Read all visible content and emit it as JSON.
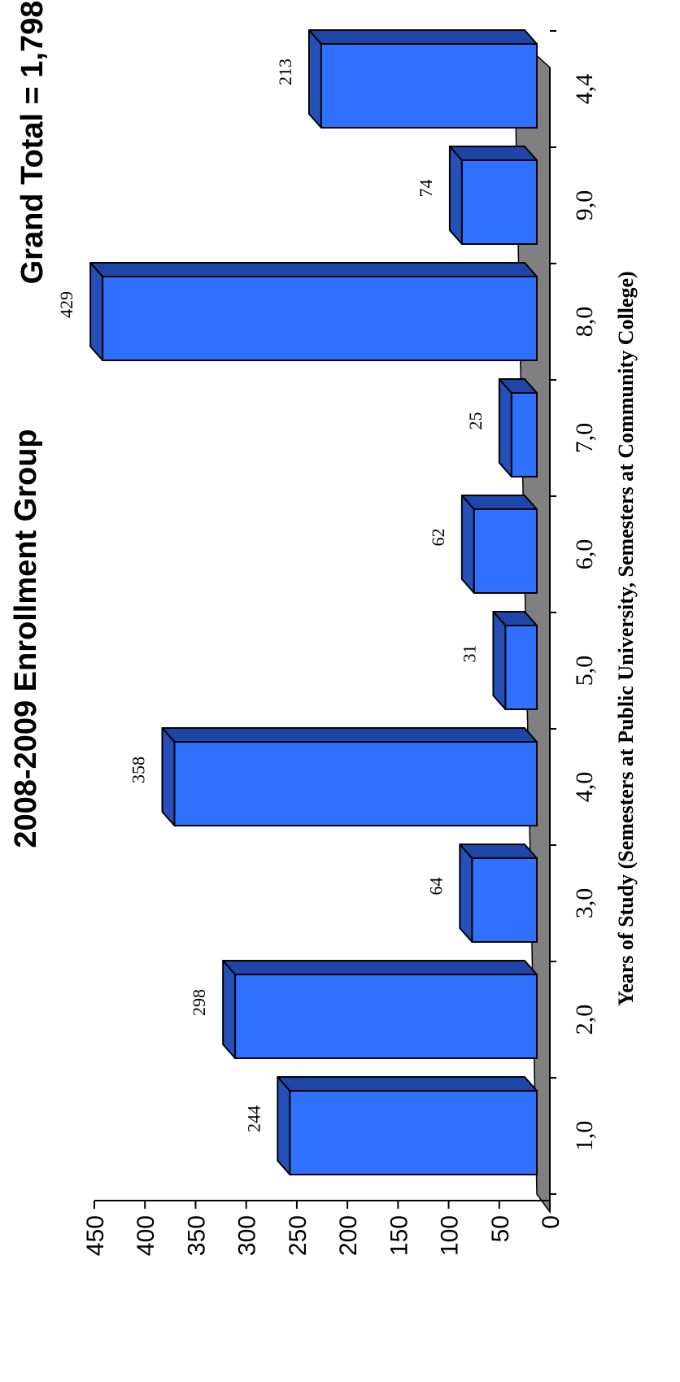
{
  "chart_data": {
    "type": "bar",
    "title": "2008-2009 Enrollment Group",
    "subtitle": "Grand Total = 1,798",
    "xlabel": "Years of Study (Semesters at Public University, Semesters at Community College)",
    "ylabel": "",
    "categories": [
      "1,0",
      "2,0",
      "3,0",
      "4,0",
      "5,0",
      "6,0",
      "7,0",
      "8,0",
      "9,0",
      "4,4"
    ],
    "values": [
      244,
      298,
      64,
      358,
      31,
      62,
      25,
      429,
      74,
      213
    ],
    "data_labels": [
      "244",
      "298",
      "64",
      "358",
      "31",
      "62",
      "25",
      "429",
      "74",
      "213"
    ],
    "ylim": [
      0,
      450
    ],
    "yticks": [
      "0",
      "50",
      "100",
      "150",
      "200",
      "250",
      "300",
      "350",
      "400",
      "450"
    ],
    "orientation": "rotated 90 degrees counter-clockwise",
    "style": "3d",
    "grid": false,
    "legend": "none",
    "colors": {
      "bar_front": "#3070FF",
      "bar_top": "#2450B8",
      "bar_side": "#1E45A8",
      "floor": "#808080",
      "outline": "#000000"
    }
  }
}
